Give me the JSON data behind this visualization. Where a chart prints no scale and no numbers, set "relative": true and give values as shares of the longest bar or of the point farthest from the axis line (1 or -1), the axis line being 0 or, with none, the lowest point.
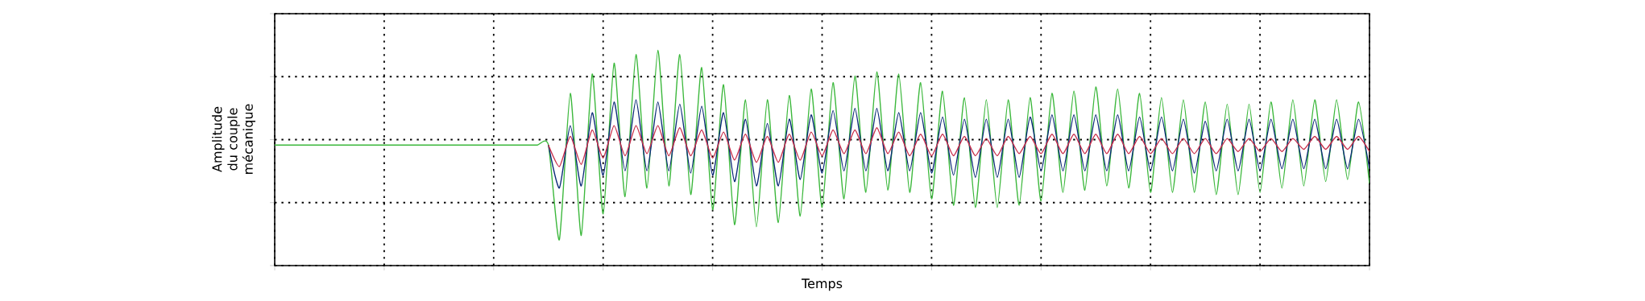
{
  "chart_data": {
    "type": "line",
    "relative": true,
    "grid": true,
    "tick_labels": false,
    "xlabel": "Temps",
    "ylabel": "Amplitude du couple mécanique",
    "categories": [
      null,
      null,
      null,
      null,
      null,
      null,
      null,
      null,
      null,
      null,
      null,
      null,
      null,
      null,
      null,
      null,
      null,
      null,
      null,
      null,
      null,
      null,
      null,
      null,
      null,
      null,
      null,
      null,
      null,
      null,
      null,
      null,
      null,
      null,
      null,
      null,
      null,
      null,
      null,
      null,
      null,
      null,
      null,
      null,
      null,
      null,
      null,
      null,
      null,
      null,
      null,
      null,
      null,
      null,
      null,
      null,
      null,
      null,
      null,
      null,
      null,
      null,
      null,
      null,
      null,
      null,
      null,
      null,
      null,
      null,
      null,
      null,
      null,
      null,
      null,
      null,
      null,
      null,
      null,
      null,
      null,
      null,
      null,
      null,
      null,
      null,
      null,
      null,
      null,
      null,
      null,
      null,
      null,
      null,
      null,
      null,
      null,
      null,
      null,
      null,
      null
    ],
    "series": [
      {
        "color": "#3cb83c",
        "values": [
          0.56,
          0.56,
          0.56,
          0.56,
          0.56,
          0.56,
          0.56,
          0.56,
          0.56,
          0.56,
          0.56,
          0.56,
          0.56,
          0.56,
          0.56,
          0.56,
          0.56,
          0.56,
          0.56,
          0.56,
          0.56,
          0.56,
          0.56,
          0.56,
          0.56,
          0.56,
          0.12,
          0.8,
          0.14,
          0.89,
          0.24,
          0.94,
          0.32,
          0.98,
          0.36,
          1,
          0.37,
          0.98,
          0.33,
          0.92,
          0.26,
          0.84,
          0.19,
          0.77,
          0.18,
          0.77,
          0.2,
          0.79,
          0.23,
          0.82,
          0.27,
          0.85,
          0.31,
          0.88,
          0.34,
          0.9,
          0.35,
          0.89,
          0.34,
          0.85,
          0.31,
          0.81,
          0.28,
          0.78,
          0.27,
          0.77,
          0.27,
          0.77,
          0.28,
          0.78,
          0.3,
          0.8,
          0.34,
          0.81,
          0.35,
          0.83,
          0.37,
          0.82,
          0.36,
          0.8,
          0.34,
          0.78,
          0.34,
          0.77,
          0.34,
          0.76,
          0.33,
          0.75,
          0.33,
          0.75,
          0.34,
          0.76,
          0.36,
          0.77,
          0.37,
          0.77,
          0.39,
          0.77,
          0.4,
          0.76,
          0.38
        ]
      },
      {
        "color": "#0b2a78",
        "values": [
          null,
          null,
          null,
          null,
          null,
          null,
          null,
          null,
          null,
          null,
          null,
          null,
          null,
          null,
          null,
          null,
          null,
          null,
          null,
          null,
          null,
          null,
          null,
          null,
          null,
          0.56,
          0.36,
          0.65,
          0.37,
          0.71,
          0.42,
          0.76,
          0.44,
          0.77,
          0.44,
          0.76,
          0.44,
          0.75,
          0.43,
          0.74,
          0.42,
          0.71,
          0.39,
          0.68,
          0.37,
          0.66,
          0.37,
          0.68,
          0.4,
          0.7,
          0.43,
          0.72,
          0.44,
          0.73,
          0.44,
          0.73,
          0.44,
          0.71,
          0.44,
          0.71,
          0.43,
          0.69,
          0.42,
          0.68,
          0.41,
          0.68,
          0.41,
          0.68,
          0.41,
          0.69,
          0.44,
          0.7,
          0.44,
          0.7,
          0.44,
          0.7,
          0.44,
          0.7,
          0.44,
          0.69,
          0.44,
          0.69,
          0.44,
          0.68,
          0.43,
          0.67,
          0.44,
          0.68,
          0.44,
          0.68,
          0.44,
          0.68,
          0.45,
          0.68,
          0.45,
          0.68,
          0.45,
          0.68,
          0.45,
          0.68,
          0.45
        ]
      },
      {
        "color": "#c8304c",
        "values": [
          null,
          null,
          null,
          null,
          null,
          null,
          null,
          null,
          null,
          null,
          null,
          null,
          null,
          null,
          null,
          null,
          null,
          null,
          null,
          null,
          null,
          null,
          null,
          null,
          null,
          0.56,
          0.46,
          0.6,
          0.47,
          0.63,
          0.5,
          0.65,
          0.51,
          0.65,
          0.52,
          0.65,
          0.51,
          0.64,
          0.51,
          0.63,
          0.5,
          0.62,
          0.49,
          0.61,
          0.48,
          0.6,
          0.48,
          0.61,
          0.49,
          0.62,
          0.51,
          0.63,
          0.52,
          0.63,
          0.52,
          0.64,
          0.52,
          0.62,
          0.51,
          0.61,
          0.51,
          0.61,
          0.51,
          0.6,
          0.51,
          0.59,
          0.51,
          0.6,
          0.52,
          0.6,
          0.52,
          0.61,
          0.52,
          0.61,
          0.52,
          0.61,
          0.52,
          0.61,
          0.52,
          0.6,
          0.52,
          0.59,
          0.52,
          0.59,
          0.52,
          0.59,
          0.52,
          0.59,
          0.53,
          0.59,
          0.53,
          0.59,
          0.53,
          0.59,
          0.54,
          0.6,
          0.54,
          0.6,
          0.54,
          0.6,
          0.53
        ]
      }
    ]
  }
}
